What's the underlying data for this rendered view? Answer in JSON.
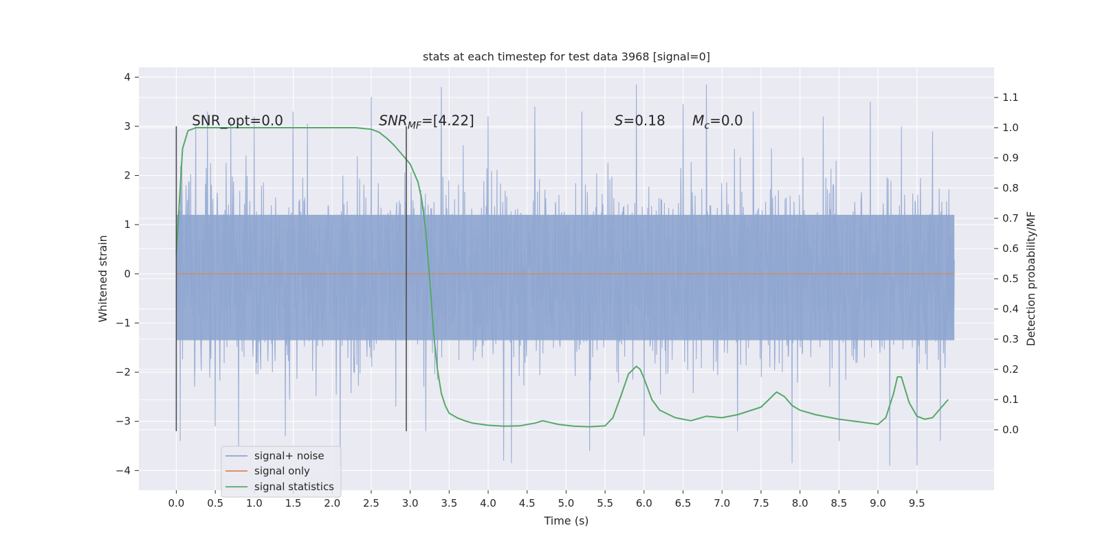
{
  "chart_data": {
    "type": "line",
    "title": "stats at each timestep for test data 3968 [signal=0]",
    "xlabel": "Time (s)",
    "ylabel": "Whitened strain",
    "ylabel_right": "Detection probability/MF",
    "xlim": [
      -0.48,
      10.49
    ],
    "ylim": [
      -4.4,
      4.2
    ],
    "ylim_right": [
      -0.2,
      1.2
    ],
    "x_ticks": [
      0.0,
      0.5,
      1.0,
      1.5,
      2.0,
      2.5,
      3.0,
      3.5,
      4.0,
      4.5,
      5.0,
      5.5,
      6.0,
      6.5,
      7.0,
      7.5,
      8.0,
      8.5,
      9.0,
      9.5
    ],
    "x_tick_labels": [
      "0.0",
      "0.5",
      "1.0",
      "1.5",
      "2.0",
      "2.5",
      "3.0",
      "3.5",
      "4.0",
      "4.5",
      "5.0",
      "5.5",
      "6.0",
      "6.5",
      "7.0",
      "7.5",
      "8.0",
      "8.5",
      "9.0",
      "9.5"
    ],
    "y_ticks": [
      4,
      3,
      2,
      1,
      0,
      -1,
      -2,
      -3,
      -4
    ],
    "y_tick_labels": [
      "4",
      "3",
      "2",
      "1",
      "0",
      "−1",
      "−2",
      "−3",
      "−4"
    ],
    "y2_ticks": [
      1.1,
      1.0,
      0.9,
      0.8,
      0.7,
      0.6,
      0.5,
      0.4,
      0.3,
      0.2,
      0.1,
      0.0
    ],
    "y2_tick_labels": [
      "1.1",
      "1.0",
      "0.9",
      "0.8",
      "0.7",
      "0.6",
      "0.5",
      "0.4",
      "0.3",
      "0.2",
      "0.1",
      "0.0"
    ],
    "grid": true,
    "legend_position": "lower-left",
    "colors": {
      "noise": "#8fa6d0",
      "signal": "#dd8452",
      "statistics": "#55a868",
      "background": "#eaeaf2",
      "grid": "#ffffff",
      "vline": "#4d4d4d"
    },
    "series": [
      {
        "name": "signal+ noise",
        "axis": "left",
        "style": "noise",
        "x_range": [
          0.0,
          9.98
        ],
        "core_band": [
          -1.35,
          1.2
        ],
        "peaks_upper": [
          [
            0.25,
            3.0
          ],
          [
            0.4,
            3.3
          ],
          [
            0.7,
            3.1
          ],
          [
            1.0,
            3.2
          ],
          [
            1.5,
            3.3
          ],
          [
            2.1,
            3.2
          ],
          [
            2.5,
            3.6
          ],
          [
            3.4,
            3.8
          ],
          [
            4.0,
            3.2
          ],
          [
            4.6,
            3.4
          ],
          [
            5.2,
            3.3
          ],
          [
            5.9,
            3.85
          ],
          [
            6.5,
            3.45
          ],
          [
            6.8,
            3.85
          ],
          [
            7.4,
            3.3
          ],
          [
            8.3,
            3.2
          ],
          [
            8.9,
            3.5
          ],
          [
            9.3,
            3.0
          ],
          [
            9.7,
            2.9
          ]
        ],
        "peaks_lower": [
          [
            0.05,
            -3.4
          ],
          [
            0.5,
            -3.1
          ],
          [
            0.8,
            -3.5
          ],
          [
            1.4,
            -3.3
          ],
          [
            2.1,
            -3.9
          ],
          [
            3.2,
            -3.2
          ],
          [
            4.2,
            -3.8
          ],
          [
            4.3,
            -3.85
          ],
          [
            5.3,
            -3.6
          ],
          [
            6.0,
            -3.3
          ],
          [
            7.2,
            -3.2
          ],
          [
            7.9,
            -3.85
          ],
          [
            8.5,
            -3.4
          ],
          [
            9.15,
            -3.9
          ],
          [
            9.5,
            -3.9
          ],
          [
            9.8,
            -3.4
          ]
        ]
      },
      {
        "name": "signal only",
        "axis": "left",
        "x": [
          0.0,
          9.98
        ],
        "y": [
          0.0,
          0.0
        ]
      },
      {
        "name": "signal statistics",
        "axis": "right",
        "x": [
          0.0,
          0.08,
          0.15,
          0.25,
          0.4,
          0.6,
          1.0,
          1.5,
          2.0,
          2.3,
          2.5,
          2.6,
          2.7,
          2.8,
          2.9,
          3.0,
          3.1,
          3.15,
          3.2,
          3.25,
          3.3,
          3.35,
          3.4,
          3.45,
          3.5,
          3.6,
          3.7,
          3.8,
          4.0,
          4.2,
          4.4,
          4.6,
          4.7,
          4.9,
          5.1,
          5.3,
          5.5,
          5.6,
          5.7,
          5.8,
          5.9,
          5.95,
          6.0,
          6.1,
          6.2,
          6.4,
          6.6,
          6.8,
          7.0,
          7.2,
          7.5,
          7.6,
          7.7,
          7.8,
          7.9,
          8.0,
          8.2,
          8.5,
          8.8,
          9.0,
          9.1,
          9.2,
          9.25,
          9.3,
          9.4,
          9.5,
          9.6,
          9.7,
          9.9
        ],
        "y": [
          0.58,
          0.93,
          0.99,
          1.0,
          1.0,
          1.0,
          1.0,
          1.0,
          1.0,
          1.0,
          0.995,
          0.985,
          0.965,
          0.94,
          0.91,
          0.88,
          0.82,
          0.76,
          0.66,
          0.5,
          0.32,
          0.2,
          0.12,
          0.08,
          0.055,
          0.04,
          0.03,
          0.022,
          0.015,
          0.012,
          0.013,
          0.022,
          0.03,
          0.018,
          0.012,
          0.01,
          0.013,
          0.04,
          0.11,
          0.185,
          0.21,
          0.2,
          0.17,
          0.1,
          0.065,
          0.04,
          0.03,
          0.045,
          0.04,
          0.05,
          0.075,
          0.1,
          0.125,
          0.11,
          0.08,
          0.065,
          0.05,
          0.035,
          0.025,
          0.018,
          0.04,
          0.12,
          0.175,
          0.175,
          0.09,
          0.045,
          0.035,
          0.04,
          0.1
        ]
      }
    ],
    "vlines": [
      0.0,
      2.95
    ],
    "vline_range": [
      -3.2,
      3.0
    ],
    "annotations": [
      {
        "text": "SNR_opt=0.0",
        "x": 0.2,
        "y": 3.02,
        "style": "plain"
      },
      {
        "text": "SNR",
        "sub": "MF",
        "rest": "=[4.22]",
        "x": 2.6,
        "y": 3.02,
        "style": "math"
      },
      {
        "text": "S",
        "rest": "=0.18",
        "x": 5.62,
        "y": 3.02,
        "style": "math-single"
      },
      {
        "text": "M",
        "sub": "c",
        "rest": "=0.0",
        "x": 6.62,
        "y": 3.02,
        "style": "math"
      }
    ]
  }
}
